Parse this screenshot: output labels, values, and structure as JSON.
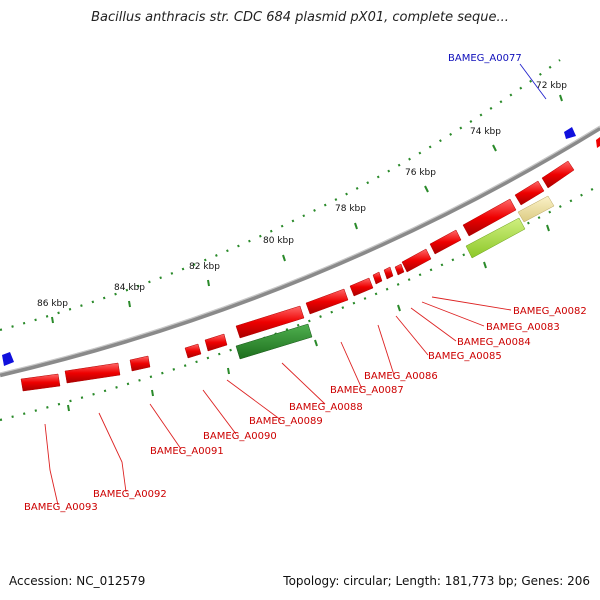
{
  "title": "Bacillus anthracis str. CDC 684 plasmid pX01, complete seque...",
  "footer": {
    "accession": "Accession: NC_012579",
    "summary": "Topology: circular; Length: 181,773 bp; Genes: 206"
  },
  "colors": {
    "backbone": "#808080",
    "gene_forward": "#ee0000",
    "gene_reverse": "#ee0000",
    "feature_dark_green": "#2a8a2a",
    "feature_light_green": "#a8e040",
    "feature_tan": "#eee0a0",
    "label_red": "#cc0000",
    "label_blue": "#1010bb",
    "tick_green": "#228822",
    "marker_blue": "#1010dd"
  },
  "scale_labels": [
    "72 kbp",
    "74 kbp",
    "76 kbp",
    "78 kbp",
    "80 kbp",
    "82 kbp",
    "84 kbp",
    "86 kbp"
  ],
  "gene_labels": [
    {
      "text": "BAMEG_A0077",
      "color": "blue"
    },
    {
      "text": "BAMEG_A0082",
      "color": "red"
    },
    {
      "text": "BAMEG_A0083",
      "color": "red"
    },
    {
      "text": "BAMEG_A0084",
      "color": "red"
    },
    {
      "text": "BAMEG_A0085",
      "color": "red"
    },
    {
      "text": "BAMEG_A0086",
      "color": "red"
    },
    {
      "text": "BAMEG_A0087",
      "color": "red"
    },
    {
      "text": "BAMEG_A0088",
      "color": "red"
    },
    {
      "text": "BAMEG_A0089",
      "color": "red"
    },
    {
      "text": "BAMEG_A0090",
      "color": "red"
    },
    {
      "text": "BAMEG_A0091",
      "color": "red"
    },
    {
      "text": "BAMEG_A0092",
      "color": "red"
    },
    {
      "text": "BAMEG_A0093",
      "color": "red"
    }
  ]
}
